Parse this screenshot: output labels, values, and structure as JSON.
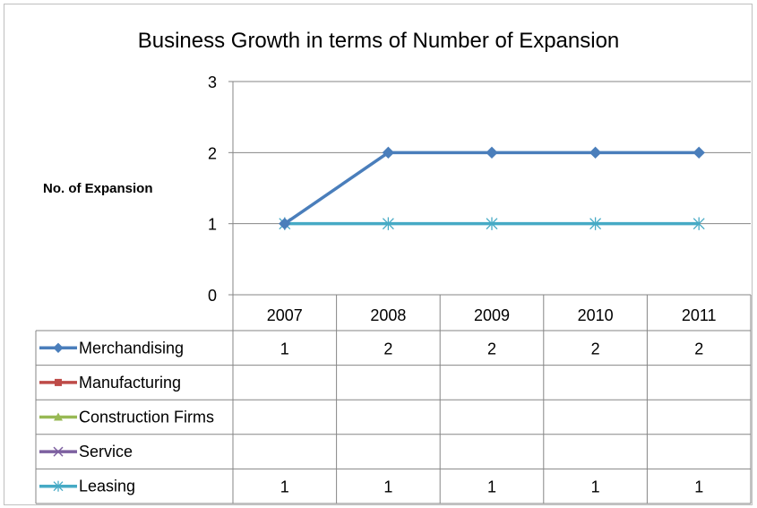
{
  "chart_data": {
    "type": "line",
    "title": "Business Growth in terms of Number of Expansion",
    "ylabel": "No. of Expansion",
    "xlabel": "",
    "categories": [
      "2007",
      "2008",
      "2009",
      "2010",
      "2011"
    ],
    "ylim": [
      0,
      3
    ],
    "yticks": [
      "0",
      "1",
      "2",
      "3"
    ],
    "grid": true,
    "legend": "data-table",
    "series": [
      {
        "name": "Merchandising",
        "color": "#4a7ebb",
        "marker": "diamond",
        "values": [
          1,
          2,
          2,
          2,
          2
        ]
      },
      {
        "name": "Manufacturing",
        "color": "#be4b48",
        "marker": "square",
        "values": [
          null,
          null,
          null,
          null,
          null
        ]
      },
      {
        "name": "Construction Firms",
        "color": "#98b954",
        "marker": "triangle",
        "values": [
          null,
          null,
          null,
          null,
          null
        ]
      },
      {
        "name": "Service",
        "color": "#7d60a0",
        "marker": "x",
        "values": [
          null,
          null,
          null,
          null,
          null
        ]
      },
      {
        "name": "Leasing",
        "color": "#46aac5",
        "marker": "asterisk",
        "values": [
          1,
          1,
          1,
          1,
          1
        ]
      }
    ]
  }
}
